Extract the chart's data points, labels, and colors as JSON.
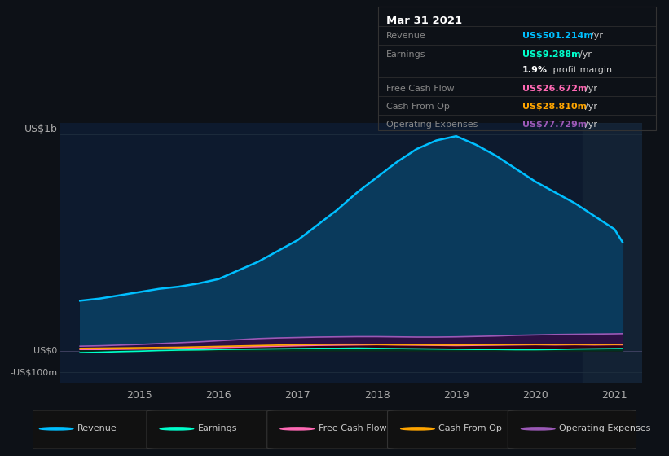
{
  "bg_color": "#0d1117",
  "plot_bg_color": "#0d1a2e",
  "ylabel_text": "US$1b",
  "ylabel_zero": "US$0",
  "ylabel_neg": "-US$100m",
  "x_ticks": [
    2015,
    2016,
    2017,
    2018,
    2019,
    2020,
    2021
  ],
  "ylim": [
    -150,
    1050
  ],
  "revenue_color": "#00bfff",
  "revenue_fill": "#0a3a5c",
  "earnings_color": "#00ffcc",
  "earnings_fill": "#003322",
  "fcf_color": "#ff69b4",
  "fcf_fill": "#330011",
  "cashfromop_color": "#ffa500",
  "cashfromop_fill": "#331a00",
  "opex_color": "#9b59b6",
  "opex_fill": "#2d1045",
  "legend_bg": "#111111",
  "info_box_bg": "#0a0a0a",
  "info_box_border": "#333333",
  "info_title": "Mar 31 2021",
  "info_rows": [
    {
      "label": "Revenue",
      "value": "US$501.214m",
      "unit": "/yr",
      "color": "#00bfff"
    },
    {
      "label": "Earnings",
      "value": "US$9.288m",
      "unit": "/yr",
      "color": "#00ffcc"
    },
    {
      "label": "",
      "value": "1.9%",
      "unit": " profit margin",
      "color": "#ffffff"
    },
    {
      "label": "Free Cash Flow",
      "value": "US$26.672m",
      "unit": "/yr",
      "color": "#ff69b4"
    },
    {
      "label": "Cash From Op",
      "value": "US$28.810m",
      "unit": "/yr",
      "color": "#ffa500"
    },
    {
      "label": "Operating Expenses",
      "value": "US$77.729m",
      "unit": "/yr",
      "color": "#9b59b6"
    }
  ],
  "x": [
    2014.25,
    2014.5,
    2014.75,
    2015.0,
    2015.25,
    2015.5,
    2015.75,
    2016.0,
    2016.25,
    2016.5,
    2016.75,
    2017.0,
    2017.25,
    2017.5,
    2017.75,
    2018.0,
    2018.25,
    2018.5,
    2018.75,
    2019.0,
    2019.25,
    2019.5,
    2019.75,
    2020.0,
    2020.25,
    2020.5,
    2020.75,
    2021.0,
    2021.1
  ],
  "revenue": [
    230,
    240,
    255,
    270,
    285,
    295,
    310,
    330,
    370,
    410,
    460,
    510,
    580,
    650,
    730,
    800,
    870,
    930,
    970,
    990,
    950,
    900,
    840,
    780,
    730,
    680,
    620,
    560,
    501
  ],
  "earnings": [
    -10,
    -8,
    -5,
    -3,
    0,
    2,
    3,
    5,
    6,
    7,
    8,
    9,
    10,
    10,
    11,
    10,
    9,
    8,
    7,
    6,
    5,
    5,
    4,
    4,
    5,
    7,
    8,
    9,
    9.288
  ],
  "fcf": [
    5,
    5,
    6,
    7,
    8,
    10,
    12,
    14,
    16,
    18,
    20,
    22,
    24,
    25,
    26,
    27,
    26,
    25,
    24,
    23,
    24,
    25,
    26,
    27,
    26,
    27,
    26,
    27,
    26.672
  ],
  "cashfromop": [
    10,
    11,
    12,
    13,
    14,
    15,
    17,
    19,
    21,
    23,
    25,
    27,
    28,
    29,
    29,
    28,
    27,
    27,
    26,
    26,
    27,
    27,
    28,
    28,
    28,
    28,
    28,
    28,
    28.81
  ],
  "opex": [
    20,
    22,
    25,
    28,
    32,
    36,
    40,
    45,
    50,
    55,
    58,
    60,
    62,
    63,
    64,
    64,
    63,
    62,
    62,
    63,
    65,
    67,
    70,
    72,
    74,
    75,
    76,
    77,
    77.729
  ],
  "highlight_x": 2020.6,
  "legend_items": [
    {
      "label": "Revenue",
      "color": "#00bfff"
    },
    {
      "label": "Earnings",
      "color": "#00ffcc"
    },
    {
      "label": "Free Cash Flow",
      "color": "#ff69b4"
    },
    {
      "label": "Cash From Op",
      "color": "#ffa500"
    },
    {
      "label": "Operating Expenses",
      "color": "#9b59b6"
    }
  ]
}
